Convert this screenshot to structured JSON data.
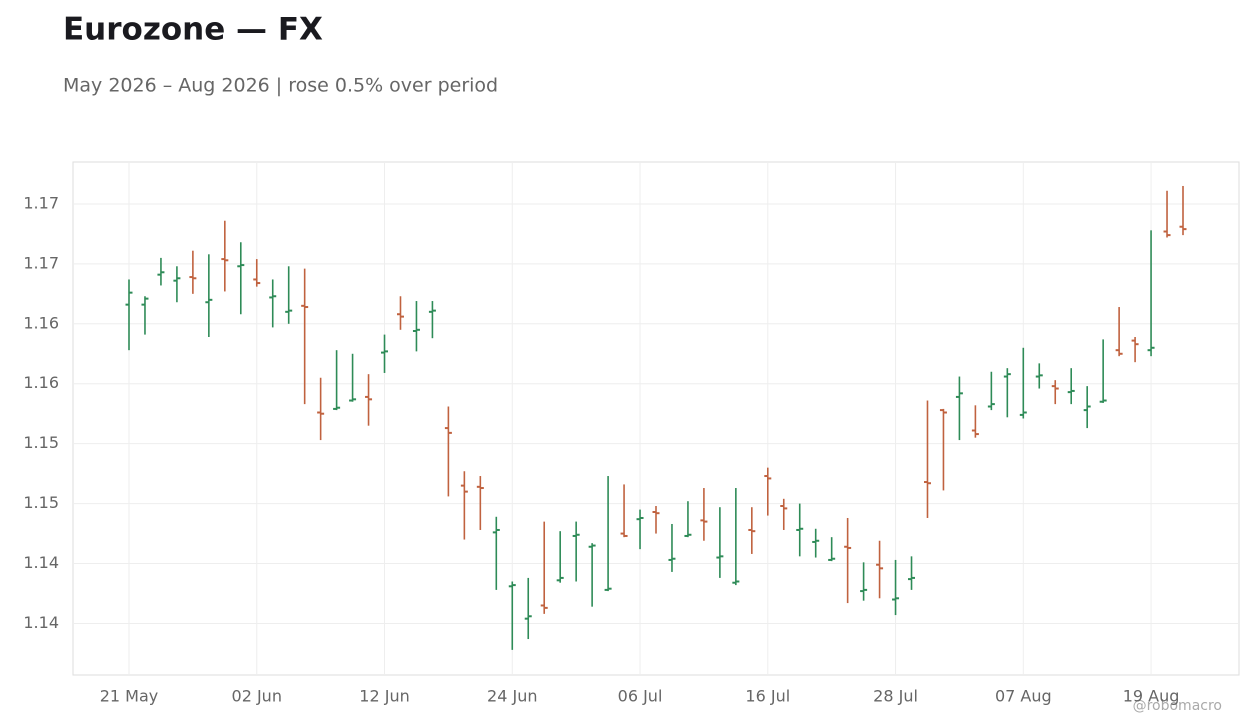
{
  "chart_data": {
    "type": "ohlc",
    "title": "Eurozone — FX",
    "subtitle": "May 2026 – Aug 2026 | rose 0.5% over period",
    "credit": "@robomacro",
    "categories": [
      "21 May",
      null,
      null,
      null,
      null,
      null,
      null,
      null,
      "02 Jun",
      null,
      null,
      null,
      null,
      null,
      null,
      null,
      "12 Jun",
      null,
      null,
      null,
      null,
      null,
      null,
      null,
      "24 Jun",
      null,
      null,
      null,
      null,
      null,
      null,
      null,
      "06 Jul",
      null,
      null,
      null,
      null,
      null,
      null,
      null,
      "16 Jul",
      null,
      null,
      null,
      null,
      null,
      null,
      null,
      "28 Jul",
      null,
      null,
      null,
      null,
      null,
      null,
      null,
      "07 Aug",
      null,
      null,
      null,
      null,
      null,
      null,
      null,
      "19 Aug",
      null,
      null
    ],
    "open": [
      1.1641,
      1.1641,
      1.1666,
      1.1661,
      1.1664,
      1.1643,
      1.1679,
      1.1673,
      1.1662,
      1.1647,
      1.1635,
      1.164,
      1.1551,
      1.1554,
      1.1561,
      1.1564,
      1.1601,
      1.1633,
      1.1619,
      1.1635,
      1.1538,
      1.149,
      1.1489,
      1.1451,
      1.1406,
      1.1379,
      1.139,
      1.1411,
      1.1448,
      1.1439,
      1.1403,
      1.145,
      1.1462,
      1.1468,
      1.1428,
      1.1448,
      1.1461,
      1.143,
      1.1409,
      1.1453,
      1.1498,
      1.1473,
      1.1453,
      1.1443,
      1.1428,
      1.1439,
      1.1402,
      1.1424,
      1.1395,
      1.1412,
      1.1493,
      1.1553,
      1.1564,
      1.1536,
      1.1556,
      1.1581,
      1.1549,
      1.1581,
      1.1573,
      1.1568,
      1.1553,
      1.156,
      1.1603,
      1.1611,
      1.1603,
      1.1702,
      1.1706
    ],
    "high": [
      1.1662,
      1.1648,
      1.168,
      1.1673,
      1.1686,
      1.1683,
      1.1711,
      1.1693,
      1.1679,
      1.1662,
      1.1673,
      1.1671,
      1.158,
      1.1603,
      1.16,
      1.1583,
      1.1616,
      1.1648,
      1.1644,
      1.1644,
      1.1556,
      1.1502,
      1.1498,
      1.1464,
      1.141,
      1.1413,
      1.146,
      1.1452,
      1.146,
      1.1442,
      1.1498,
      1.1491,
      1.147,
      1.1473,
      1.1458,
      1.1477,
      1.1488,
      1.1472,
      1.1488,
      1.1472,
      1.1505,
      1.1479,
      1.1475,
      1.1454,
      1.1447,
      1.1463,
      1.1426,
      1.1444,
      1.1428,
      1.1431,
      1.1561,
      1.1554,
      1.1581,
      1.1557,
      1.1585,
      1.1588,
      1.1605,
      1.1592,
      1.1578,
      1.1588,
      1.1573,
      1.1612,
      1.1639,
      1.1614,
      1.1703,
      1.1736,
      1.174
    ],
    "low": [
      1.1603,
      1.1616,
      1.1657,
      1.1643,
      1.165,
      1.1614,
      1.1652,
      1.1633,
      1.1656,
      1.1622,
      1.1625,
      1.1558,
      1.1528,
      1.1553,
      1.156,
      1.154,
      1.1584,
      1.162,
      1.1602,
      1.1613,
      1.1481,
      1.1445,
      1.1453,
      1.1403,
      1.1353,
      1.1362,
      1.1383,
      1.1409,
      1.141,
      1.1389,
      1.1402,
      1.1447,
      1.1437,
      1.145,
      1.1418,
      1.1447,
      1.1444,
      1.1413,
      1.1407,
      1.1433,
      1.1465,
      1.1453,
      1.1431,
      1.143,
      1.1427,
      1.1392,
      1.1394,
      1.1396,
      1.1382,
      1.1403,
      1.1463,
      1.1486,
      1.1528,
      1.153,
      1.1553,
      1.1547,
      1.1546,
      1.1571,
      1.1558,
      1.1558,
      1.1538,
      1.1559,
      1.1598,
      1.1593,
      1.1598,
      1.1697,
      1.1699
    ],
    "close": [
      1.1651,
      1.1646,
      1.1668,
      1.1663,
      1.1663,
      1.1645,
      1.1678,
      1.1674,
      1.1659,
      1.1648,
      1.1636,
      1.1639,
      1.155,
      1.1555,
      1.1562,
      1.1562,
      1.1602,
      1.1631,
      1.162,
      1.1636,
      1.1534,
      1.1485,
      1.1488,
      1.1453,
      1.1407,
      1.1381,
      1.1388,
      1.1413,
      1.1449,
      1.144,
      1.1404,
      1.1448,
      1.1463,
      1.1467,
      1.1429,
      1.1449,
      1.146,
      1.1431,
      1.141,
      1.1452,
      1.1496,
      1.1471,
      1.1454,
      1.1444,
      1.1429,
      1.1438,
      1.1403,
      1.1421,
      1.1396,
      1.1413,
      1.1492,
      1.1551,
      1.1567,
      1.1533,
      1.1558,
      1.1583,
      1.1551,
      1.1582,
      1.1571,
      1.1569,
      1.1556,
      1.1561,
      1.16,
      1.1608,
      1.1605,
      1.1699,
      1.1704
    ],
    "up_color": "#2e8b57",
    "down_color": "#c0623f",
    "ylim": [
      1.1332,
      1.176
    ],
    "yticks": [
      {
        "value": 1.1375,
        "label": "1.14"
      },
      {
        "value": 1.1425,
        "label": "1.14"
      },
      {
        "value": 1.1475,
        "label": "1.15"
      },
      {
        "value": 1.1525,
        "label": "1.15"
      },
      {
        "value": 1.1575,
        "label": "1.16"
      },
      {
        "value": 1.1625,
        "label": "1.16"
      },
      {
        "value": 1.1675,
        "label": "1.17"
      },
      {
        "value": 1.1725,
        "label": "1.17"
      }
    ],
    "grid": true
  }
}
